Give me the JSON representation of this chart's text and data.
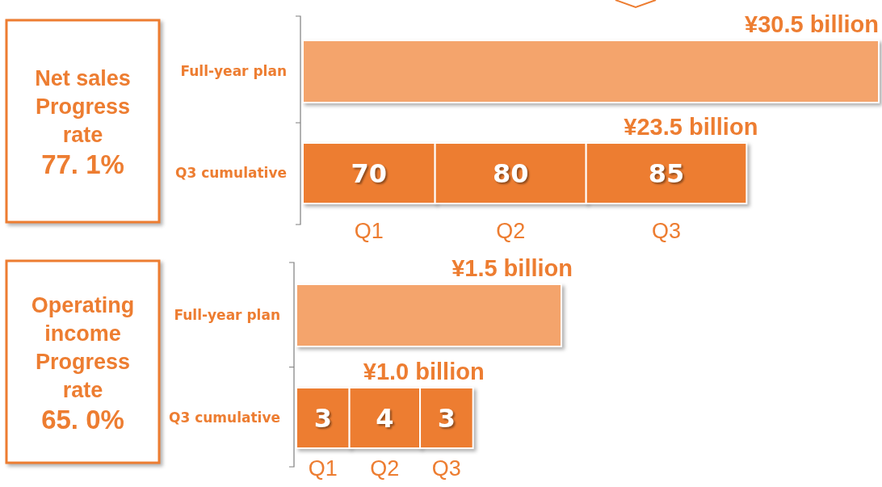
{
  "chart_data": [
    {
      "type": "bar",
      "orientation": "horizontal",
      "stacked": true,
      "title": "Net sales Progress rate",
      "categories": [
        "Full-year plan",
        "Q3 cumulative"
      ],
      "annotations": [
        "77. 1%",
        {
          "text": "¥30.5 billion",
          "x": 305,
          "y": "Full-year plan"
        },
        {
          "text": "¥23.5 billion",
          "x": 235,
          "y": "Q3 cumulative"
        }
      ],
      "series": [
        {
          "color": "#f4a46c",
          "values": [
            305,
            null
          ]
        },
        {
          "name": "Q1",
          "color": "#ed7d31",
          "values": [
            null,
            70
          ],
          "value_labels": [
            null,
            "70"
          ]
        },
        {
          "name": "Q2",
          "color": "#ed7d31",
          "values": [
            null,
            80
          ],
          "value_labels": [
            null,
            "80"
          ]
        },
        {
          "name": "Q3",
          "color": "#ed7d31",
          "values": [
            null,
            85
          ],
          "value_labels": [
            null,
            "85"
          ]
        }
      ]
    },
    {
      "type": "bar",
      "orientation": "horizontal",
      "stacked": true,
      "title": "Operating income Progress rate",
      "categories": [
        "Full-year plan",
        "Q3 cumulative"
      ],
      "annotations": [
        "65. 0%",
        {
          "text": "¥1.5 billion",
          "x": 15,
          "y": "Full-year plan"
        },
        {
          "text": "¥1.0 billion",
          "x": 10,
          "y": "Q3 cumulative"
        }
      ],
      "series": [
        {
          "color": "#f4a46c",
          "values": [
            15,
            null
          ]
        },
        {
          "name": "Q1",
          "color": "#ed7d31",
          "values": [
            null,
            3
          ],
          "value_labels": [
            null,
            "3"
          ]
        },
        {
          "name": "Q2",
          "color": "#ed7d31",
          "values": [
            null,
            4
          ],
          "value_labels": [
            null,
            "4"
          ]
        },
        {
          "name": "Q3",
          "color": "#ed7d31",
          "values": [
            null,
            3
          ],
          "value_labels": [
            null,
            "3"
          ]
        }
      ]
    }
  ]
}
